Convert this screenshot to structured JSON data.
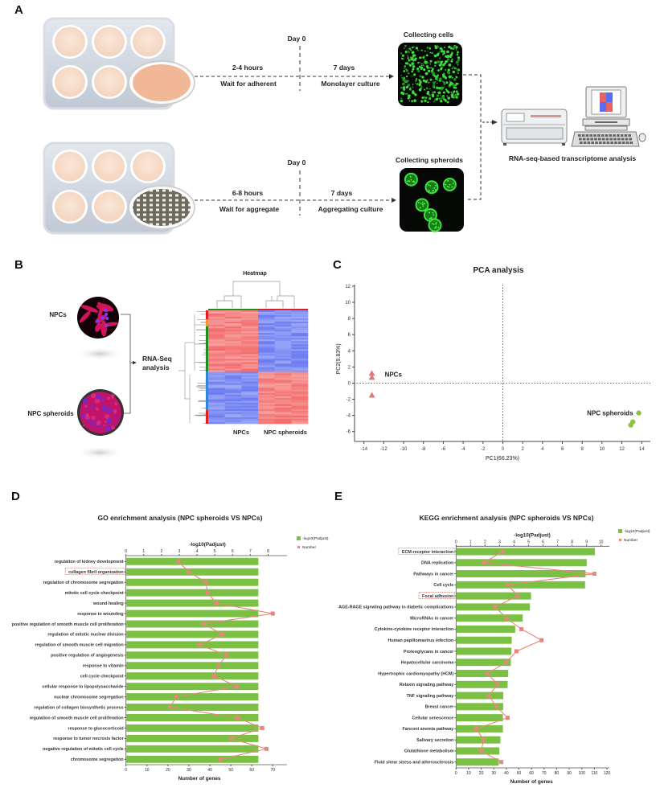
{
  "panels": {
    "A": {
      "label": "A",
      "top": {
        "day": "Day 0",
        "time": "2-4 hours",
        "wait": "Wait for adherent",
        "days": "7 days",
        "culture": "Monolayer culture",
        "collect": "Collecting cells"
      },
      "bottom": {
        "day": "Day 0",
        "time": "6-8 hours",
        "wait": "Wait for aggregate",
        "days": "7 days",
        "culture": "Aggregating culture",
        "collect": "Collecting spheroids"
      },
      "analysis": "RNA-seq-based transcriptome analysis"
    },
    "B": {
      "label": "B",
      "npcs": "NPCs",
      "spheroids": "NPC spheroids",
      "rnaseq_1": "RNA-Seq",
      "rnaseq_2": "analysis",
      "heatmap_title": "Heatmap",
      "heatmap_col_1": "NPCs",
      "heatmap_col_2": "NPC spheroids"
    },
    "C": {
      "label": "C"
    },
    "D": {
      "label": "D"
    },
    "E": {
      "label": "E"
    }
  },
  "colors": {
    "npcs": "#e07a7a",
    "spheroids": "#8cc63f",
    "bar": "#7ac143",
    "line": "#e8867c",
    "heat_high": "#f25c5c",
    "heat_low": "#5a6cf0"
  },
  "chart_data": [
    {
      "type": "scatter",
      "title": "PCA analysis",
      "xlabel": "PC1(66.23%)",
      "ylabel": "PC2(9.83%)",
      "xlim": [
        -15,
        15
      ],
      "ylim": [
        -7,
        12.5
      ],
      "xticks": [
        -14,
        -12,
        -10,
        -8,
        -6,
        -4,
        -2,
        0,
        2,
        4,
        6,
        8,
        10,
        12,
        14
      ],
      "yticks": [
        -6,
        -4,
        -2,
        0,
        2,
        4,
        6,
        8,
        10,
        12
      ],
      "reference_lines": {
        "x": 0,
        "y": 0
      },
      "series": [
        {
          "name": "NPCs",
          "marker": "triangle",
          "x": [
            -13.2,
            -13.2,
            -13.2
          ],
          "y": [
            1.2,
            0.7,
            -1.5
          ]
        },
        {
          "name": "NPC spheroids",
          "marker": "circle",
          "x": [
            13.7,
            13.1,
            12.9
          ],
          "y": [
            -3.7,
            -4.8,
            -5.2
          ]
        }
      ]
    },
    {
      "type": "bar",
      "orientation": "horizontal",
      "title": "GO enrichment analysis (NPC spheroids VS NPCs)",
      "xlabel": "Number of genes",
      "x2label": "-log10(Padjust)",
      "xlim": [
        0,
        70
      ],
      "x2lim": [
        0,
        8
      ],
      "xticks": [
        0,
        10,
        20,
        30,
        40,
        50,
        60,
        70
      ],
      "x2ticks": [
        0,
        1,
        2,
        3,
        4,
        5,
        6,
        7,
        8
      ],
      "legend": [
        "-log10(Padjust)",
        "Number"
      ],
      "legend_position": "top-right",
      "highlighted": [
        "collagen fibril organization"
      ],
      "categories": [
        "regulation of kidney development",
        "collagen fibril organization",
        "regulation of chromosome segregation",
        "mitotic cell cycle checkpoint",
        "wound healing",
        "response to wounding",
        "positive regulation of smooth muscle cell proliferation",
        "regulation of mitotic nuclear division",
        "regulation of smooth muscle cell migration",
        "positive regulation of angiogenesis",
        "response to vitamin",
        "cell cycle checkpoint",
        "cellular response to lipopolysaccharide",
        "nuclear chromosome segregation",
        "regulation of collagen biosynthetic process",
        "regulation of smooth muscle cell proliferation",
        "response to glucocorticoid",
        "response to tumor necrosis factor",
        "negative regulation of mitotic cell cycle",
        "chromosome segregation"
      ],
      "series": [
        {
          "name": "-log10(Padjust)",
          "type": "bar",
          "values": [
            7.43,
            7.43,
            7.43,
            7.43,
            7.43,
            7.43,
            7.43,
            7.43,
            7.43,
            7.43,
            7.43,
            7.43,
            7.43,
            7.43,
            7.43,
            7.43,
            7.43,
            7.43,
            7.43,
            7.43
          ]
        },
        {
          "name": "Number",
          "type": "line",
          "values": [
            25,
            30,
            38,
            39,
            43,
            70,
            37,
            46,
            35,
            48,
            44,
            42,
            53,
            24,
            21,
            53,
            65,
            50,
            67,
            45
          ]
        }
      ]
    },
    {
      "type": "bar",
      "orientation": "horizontal",
      "title": "KEGG enrichment analysis (NPC spheroids VS NPCs)",
      "xlabel": "Number of genes",
      "x2label": "-log10(Padjust)",
      "xlim": [
        0,
        120
      ],
      "x2lim": [
        0,
        10.5
      ],
      "xticks": [
        0,
        10,
        20,
        30,
        40,
        50,
        60,
        70,
        80,
        90,
        100,
        110,
        120
      ],
      "x2ticks": [
        0,
        1,
        2,
        3,
        4,
        5,
        6,
        7,
        8,
        9,
        10
      ],
      "legend": [
        "-log10(Padjust)",
        "Number"
      ],
      "legend_position": "top-right",
      "highlighted": [
        "ECM-receptor interaction",
        "Focal adhesion"
      ],
      "categories": [
        "ECM-receptor interaction",
        "DNA replication",
        "Pathways in cancer",
        "Cell cycle",
        "Focal adhesion",
        "AGE-RAGE signaling pathway in diabetic complications",
        "MicroRNAs in cancer",
        "Cytokine-cytokine receptor interaction",
        "Human papillomavirus infection",
        "Proteoglycans in cancer",
        "Hepatocellular carcinoma",
        "Hypertrophic cardiomyopathy (HCM)",
        "Relaxin signaling pathway",
        "TNF signaling pathway",
        "Breast cancer",
        "Cellular senescence",
        "Fanconi anemia pathway",
        "Salivary secretion",
        "Glutathione metabolism",
        "Fluid shear stress and atherosclerosis"
      ],
      "series": [
        {
          "name": "-log10(Padjust)",
          "type": "bar",
          "values": [
            9.54,
            8.98,
            8.9,
            8.87,
            5.14,
            5.06,
            4.57,
            4.05,
            3.81,
            3.79,
            3.75,
            3.57,
            3.53,
            3.23,
            3.22,
            3.2,
            3.2,
            3.03,
            2.96,
            2.92
          ]
        },
        {
          "name": "Number",
          "type": "line",
          "values": [
            37,
            22,
            110,
            41,
            49,
            31,
            40,
            52,
            68,
            48,
            40,
            25,
            33,
            26,
            32,
            41,
            16,
            22,
            20,
            36
          ]
        }
      ]
    }
  ]
}
